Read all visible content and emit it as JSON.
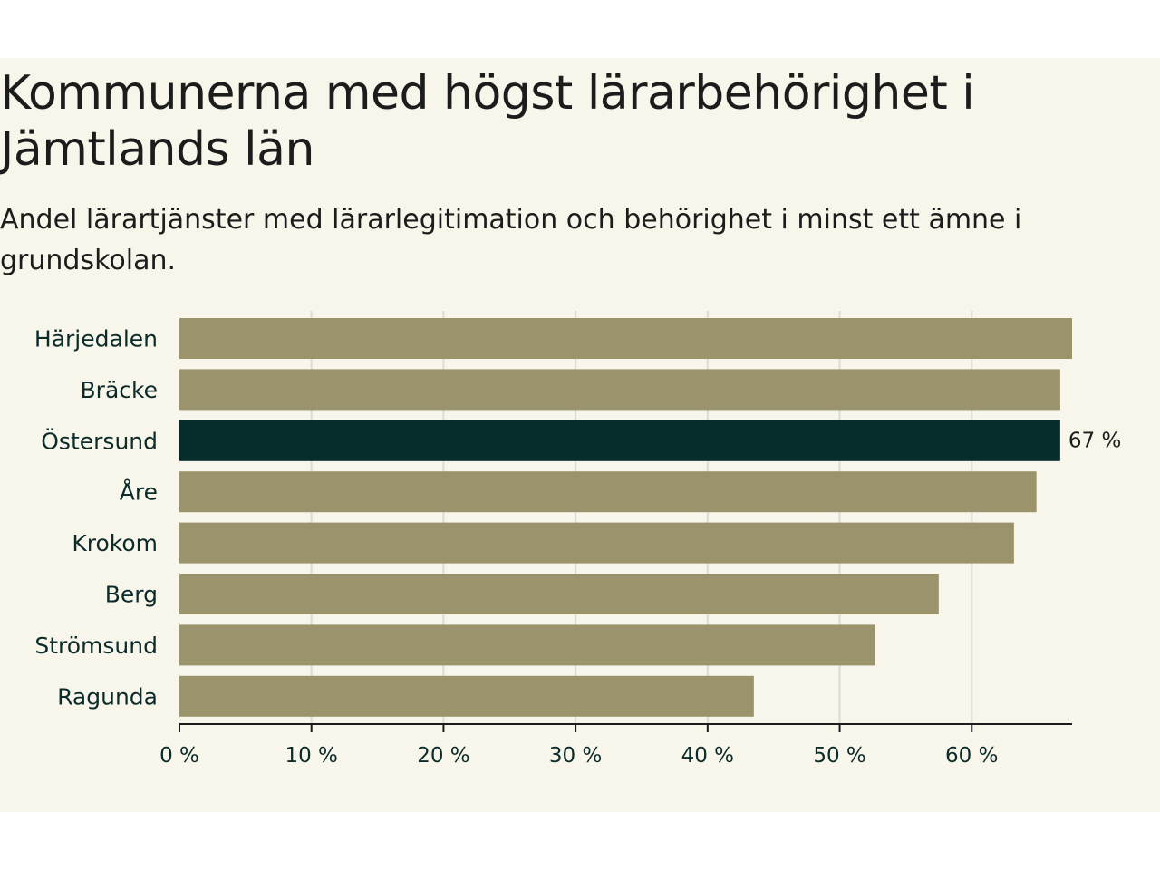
{
  "title": "Kommunerna med högst lärarbehörighet i Jämtlands län",
  "subtitle": "Andel lärartjänster med lärarlegitimation och behörighet i minst ett ämne i grundskolan.",
  "colors": {
    "bar": "#9a936c",
    "highlight": "#062c2c",
    "grid": "#dcdcd4",
    "axis": "#1c1c1c",
    "background": "#f8f6ea"
  },
  "chart_data": {
    "type": "bar",
    "orientation": "horizontal",
    "categories": [
      "Härjedalen",
      "Bräcke",
      "Östersund",
      "Åre",
      "Krokom",
      "Berg",
      "Strömsund",
      "Ragunda"
    ],
    "values": [
      67.6,
      66.7,
      66.7,
      64.9,
      63.2,
      57.5,
      52.7,
      43.5
    ],
    "highlight_index": 2,
    "value_label": {
      "index": 2,
      "text": "67 %"
    },
    "xlim": [
      0,
      67.6
    ],
    "xticks": [
      0,
      10,
      20,
      30,
      40,
      50,
      60
    ],
    "xtick_labels": [
      "0 %",
      "10 %",
      "20 %",
      "30 %",
      "40 %",
      "50 %",
      "60 %"
    ],
    "grid": true
  }
}
